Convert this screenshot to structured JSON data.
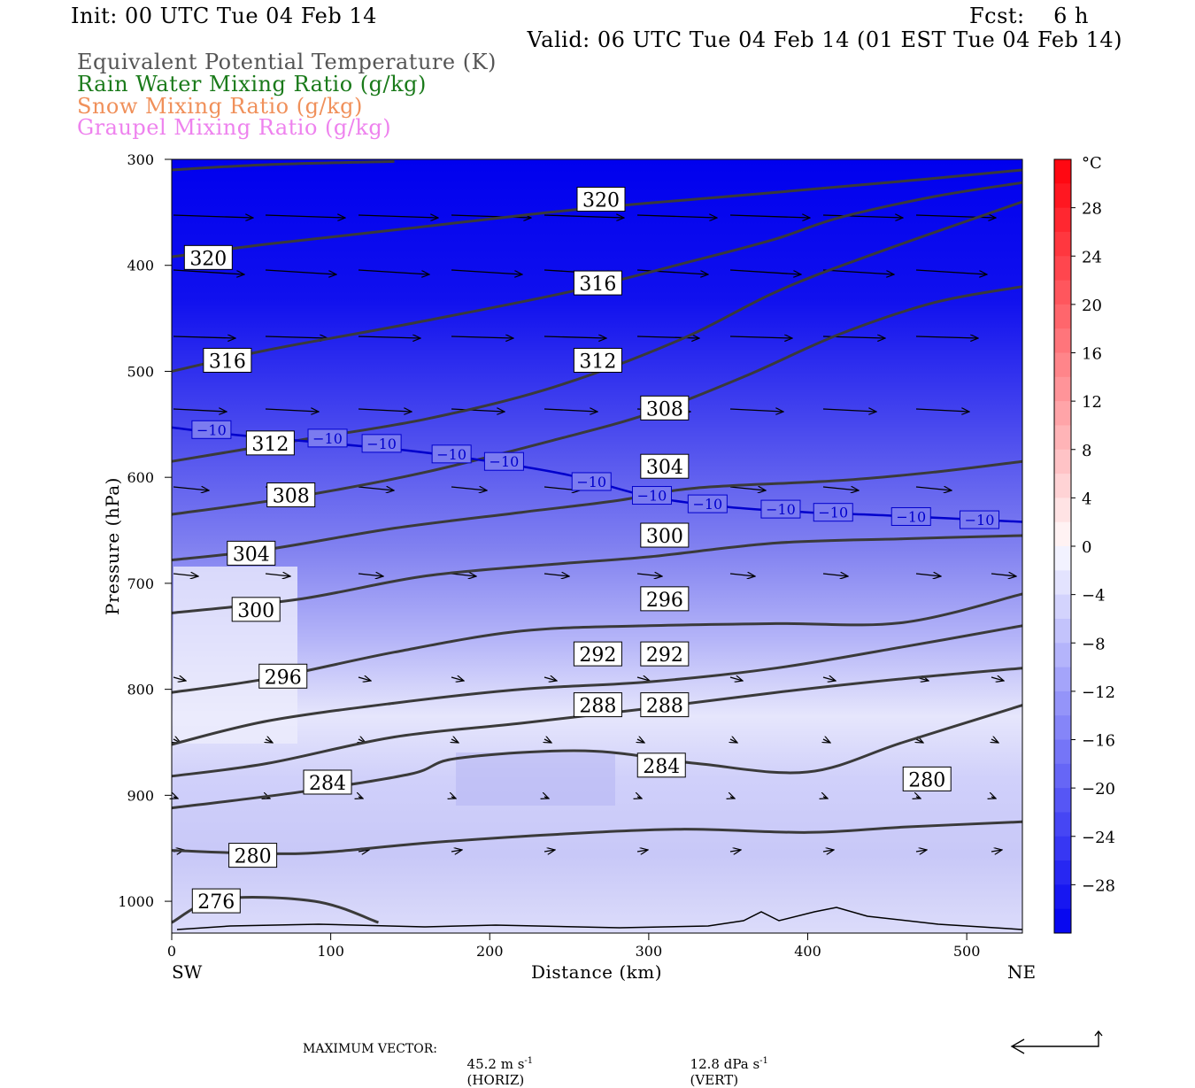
{
  "header": {
    "init": "Init: 00 UTC Tue 04 Feb 14",
    "fcst": "Fcst:    6 h",
    "valid": "Valid: 06 UTC Tue 04 Feb 14 (01 EST Tue 04 Feb 14)",
    "fields": [
      {
        "label": "Equivalent Potential Temperature (K)",
        "color": "#555555"
      },
      {
        "label": "Rain Water Mixing Ratio (g/kg)",
        "color": "#1a7a1a"
      },
      {
        "label": "Snow Mixing Ratio (g/kg)",
        "color": "#f0905a"
      },
      {
        "label": "Graupel Mixing Ratio (g/kg)",
        "color": "#ee82ee"
      }
    ]
  },
  "chart_data": {
    "type": "contour",
    "xlabel": "Distance (km)",
    "ylabel": "Pressure (hPa)",
    "xlim": [
      0,
      535
    ],
    "ylim": [
      300,
      1030
    ],
    "x_ticks": [
      0,
      100,
      200,
      300,
      400,
      500
    ],
    "y_ticks": [
      300,
      400,
      500,
      600,
      700,
      800,
      900,
      1000
    ],
    "x_end_labels": {
      "left": "SW",
      "right": "NE"
    },
    "temperature_colorbar": {
      "unit": "°C",
      "labels": [
        "28",
        "24",
        "20",
        "16",
        "12",
        "8",
        "4",
        "0",
        "−4",
        "−8",
        "−12",
        "−16",
        "−20",
        "−24",
        "−28"
      ],
      "values": [
        28,
        24,
        20,
        16,
        12,
        8,
        4,
        0,
        -4,
        -8,
        -12,
        -16,
        -20,
        -24,
        -28
      ]
    },
    "theta_e_contours": [
      {
        "value": 320,
        "points": [
          [
            0,
            310
          ],
          [
            60,
            305
          ],
          [
            140,
            302
          ]
        ]
      },
      {
        "value": 320,
        "points": [
          [
            0,
            392
          ],
          [
            60,
            380
          ],
          [
            150,
            365
          ],
          [
            250,
            348
          ],
          [
            350,
            335
          ],
          [
            450,
            322
          ],
          [
            535,
            310
          ]
        ]
      },
      {
        "value": 316,
        "points": [
          [
            0,
            500
          ],
          [
            60,
            480
          ],
          [
            150,
            455
          ],
          [
            250,
            425
          ],
          [
            330,
            395
          ],
          [
            380,
            375
          ],
          [
            420,
            355
          ],
          [
            480,
            335
          ],
          [
            535,
            322
          ]
        ]
      },
      {
        "value": 312,
        "points": [
          [
            0,
            585
          ],
          [
            80,
            565
          ],
          [
            160,
            545
          ],
          [
            240,
            515
          ],
          [
            320,
            470
          ],
          [
            380,
            425
          ],
          [
            440,
            390
          ],
          [
            535,
            340
          ]
        ]
      },
      {
        "value": 308,
        "points": [
          [
            0,
            635
          ],
          [
            80,
            618
          ],
          [
            160,
            595
          ],
          [
            240,
            565
          ],
          [
            300,
            540
          ],
          [
            360,
            505
          ],
          [
            420,
            465
          ],
          [
            480,
            435
          ],
          [
            535,
            420
          ]
        ]
      },
      {
        "value": 304,
        "points": [
          [
            0,
            678
          ],
          [
            60,
            668
          ],
          [
            140,
            648
          ],
          [
            220,
            633
          ],
          [
            280,
            622
          ],
          [
            330,
            610
          ],
          [
            420,
            603
          ],
          [
            480,
            595
          ],
          [
            535,
            585
          ]
        ]
      },
      {
        "value": 300,
        "points": [
          [
            0,
            728
          ],
          [
            80,
            715
          ],
          [
            160,
            693
          ],
          [
            240,
            682
          ],
          [
            300,
            675
          ],
          [
            380,
            662
          ],
          [
            460,
            658
          ],
          [
            535,
            655
          ]
        ]
      },
      {
        "value": 296,
        "points": [
          [
            0,
            803
          ],
          [
            60,
            790
          ],
          [
            140,
            765
          ],
          [
            220,
            745
          ],
          [
            300,
            740
          ],
          [
            380,
            738
          ],
          [
            460,
            737
          ],
          [
            535,
            710
          ]
        ]
      },
      {
        "value": 292,
        "points": [
          [
            0,
            852
          ],
          [
            60,
            830
          ],
          [
            140,
            813
          ],
          [
            220,
            800
          ],
          [
            300,
            793
          ],
          [
            380,
            780
          ],
          [
            460,
            760
          ],
          [
            535,
            740
          ]
        ]
      },
      {
        "value": 288,
        "points": [
          [
            0,
            882
          ],
          [
            60,
            870
          ],
          [
            140,
            845
          ],
          [
            220,
            832
          ],
          [
            300,
            818
          ],
          [
            380,
            803
          ],
          [
            460,
            790
          ],
          [
            535,
            780
          ]
        ]
      },
      {
        "value": 284,
        "points": [
          [
            0,
            912
          ],
          [
            80,
            897
          ],
          [
            150,
            880
          ],
          [
            180,
            865
          ],
          [
            260,
            858
          ],
          [
            330,
            870
          ],
          [
            400,
            878
          ],
          [
            460,
            850
          ],
          [
            535,
            815
          ]
        ]
      },
      {
        "value": 280,
        "points": [
          [
            0,
            952
          ],
          [
            80,
            955
          ],
          [
            160,
            945
          ],
          [
            240,
            937
          ],
          [
            320,
            932
          ],
          [
            400,
            935
          ],
          [
            460,
            930
          ],
          [
            535,
            925
          ]
        ]
      },
      {
        "value": 276,
        "points": [
          [
            0,
            1020
          ],
          [
            30,
            998
          ],
          [
            90,
            1000
          ],
          [
            130,
            1020
          ]
        ]
      }
    ],
    "theta_e_labels": [
      {
        "text": "320",
        "x": 270,
        "p": 338
      },
      {
        "text": "320",
        "x": 23,
        "p": 393
      },
      {
        "text": "316",
        "x": 268,
        "p": 417
      },
      {
        "text": "316",
        "x": 35,
        "p": 490
      },
      {
        "text": "312",
        "x": 268,
        "p": 490
      },
      {
        "text": "312",
        "x": 62,
        "p": 568
      },
      {
        "text": "308",
        "x": 310,
        "p": 535
      },
      {
        "text": "308",
        "x": 75,
        "p": 617
      },
      {
        "text": "304",
        "x": 310,
        "p": 590
      },
      {
        "text": "304",
        "x": 50,
        "p": 672
      },
      {
        "text": "300",
        "x": 310,
        "p": 655
      },
      {
        "text": "300",
        "x": 53,
        "p": 725
      },
      {
        "text": "296",
        "x": 310,
        "p": 715
      },
      {
        "text": "296",
        "x": 70,
        "p": 788
      },
      {
        "text": "292",
        "x": 268,
        "p": 767
      },
      {
        "text": "292",
        "x": 310,
        "p": 767
      },
      {
        "text": "288",
        "x": 268,
        "p": 815
      },
      {
        "text": "288",
        "x": 310,
        "p": 815
      },
      {
        "text": "284",
        "x": 308,
        "p": 872
      },
      {
        "text": "284",
        "x": 98,
        "p": 888
      },
      {
        "text": "280",
        "x": 475,
        "p": 885
      },
      {
        "text": "280",
        "x": 51,
        "p": 957
      },
      {
        "text": "276",
        "x": 28,
        "p": 1000
      }
    ],
    "isotherm_minus10": {
      "points": [
        [
          0,
          553
        ],
        [
          40,
          560
        ],
        [
          100,
          568
        ],
        [
          150,
          575
        ],
        [
          200,
          585
        ],
        [
          250,
          598
        ],
        [
          300,
          618
        ],
        [
          350,
          628
        ],
        [
          400,
          633
        ],
        [
          450,
          636
        ],
        [
          535,
          642
        ]
      ],
      "labels": [
        {
          "text": "−10",
          "x": 25,
          "p": 555
        },
        {
          "text": "−10",
          "x": 98,
          "p": 563
        },
        {
          "text": "−10",
          "x": 132,
          "p": 568
        },
        {
          "text": "−10",
          "x": 176,
          "p": 578
        },
        {
          "text": "−10",
          "x": 209,
          "p": 585
        },
        {
          "text": "−10",
          "x": 264,
          "p": 604
        },
        {
          "text": "−10",
          "x": 302,
          "p": 617
        },
        {
          "text": "−10",
          "x": 337,
          "p": 625
        },
        {
          "text": "−10",
          "x": 383,
          "p": 630
        },
        {
          "text": "−10",
          "x": 416,
          "p": 633
        },
        {
          "text": "−10",
          "x": 465,
          "p": 637
        },
        {
          "text": "−10",
          "x": 508,
          "p": 640
        }
      ]
    }
  },
  "footer": {
    "max_vector_label": "MAXIMUM VECTOR:",
    "horiz_value": "45.2 m s",
    "horiz_unit": "(HORIZ)",
    "vert_value": "12.8 dPa s",
    "vert_unit": "(VERT)",
    "exponent": "-1"
  }
}
